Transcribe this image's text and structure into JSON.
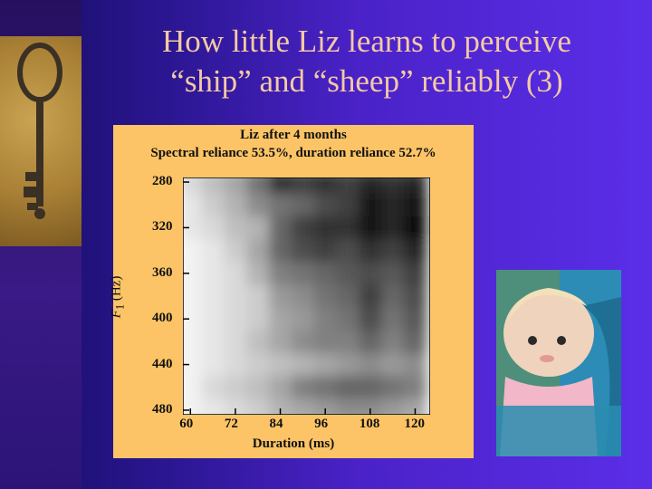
{
  "slide": {
    "title_line1": "How little Liz learns to perceive",
    "title_line2": "“ship” and “sheep” reliably (3)"
  },
  "figure": {
    "title_line1": "Liz after 4 months",
    "title_line2": "Spectral reliance 53.5%, duration reliance 52.7%",
    "ylabel_var": "F",
    "ylabel_sub": "1",
    "ylabel_unit": " (Hz)",
    "xlabel": "Duration (ms)",
    "yticks": [
      "280",
      "320",
      "360",
      "400",
      "440",
      "480"
    ],
    "xticks": [
      "60",
      "72",
      "84",
      "96",
      "108",
      "120"
    ]
  },
  "chart_data": {
    "type": "heatmap",
    "title": "Liz after 4 months",
    "subtitle": "Spectral reliance 53.5%, duration reliance 52.7%",
    "xlabel": "Duration (ms)",
    "ylabel": "F1 (Hz)",
    "xlim": [
      58,
      124
    ],
    "ylim": [
      276,
      484
    ],
    "x": [
      60,
      66,
      72,
      78,
      84,
      90,
      96,
      102,
      108,
      114,
      120
    ],
    "y": [
      280,
      300,
      320,
      340,
      360,
      380,
      400,
      420,
      440,
      460,
      480
    ],
    "z": [
      [
        0.15,
        0.25,
        0.35,
        0.55,
        0.8,
        0.75,
        0.8,
        0.75,
        0.85,
        0.8,
        0.85
      ],
      [
        0.1,
        0.2,
        0.3,
        0.45,
        0.55,
        0.6,
        0.7,
        0.75,
        0.9,
        0.85,
        0.9
      ],
      [
        0.1,
        0.15,
        0.25,
        0.3,
        0.6,
        0.75,
        0.8,
        0.8,
        0.9,
        0.85,
        0.95
      ],
      [
        0.05,
        0.1,
        0.2,
        0.35,
        0.6,
        0.7,
        0.75,
        0.7,
        0.8,
        0.75,
        0.85
      ],
      [
        0.05,
        0.1,
        0.15,
        0.3,
        0.5,
        0.55,
        0.6,
        0.65,
        0.7,
        0.65,
        0.75
      ],
      [
        0.05,
        0.1,
        0.15,
        0.2,
        0.4,
        0.45,
        0.55,
        0.6,
        0.75,
        0.6,
        0.7
      ],
      [
        0.05,
        0.1,
        0.15,
        0.2,
        0.35,
        0.4,
        0.5,
        0.55,
        0.7,
        0.55,
        0.65
      ],
      [
        0.05,
        0.1,
        0.15,
        0.25,
        0.35,
        0.45,
        0.5,
        0.5,
        0.6,
        0.5,
        0.6
      ],
      [
        0.05,
        0.1,
        0.15,
        0.2,
        0.25,
        0.3,
        0.35,
        0.4,
        0.45,
        0.4,
        0.45
      ],
      [
        0.05,
        0.15,
        0.2,
        0.25,
        0.35,
        0.5,
        0.55,
        0.6,
        0.6,
        0.55,
        0.5
      ],
      [
        0.05,
        0.1,
        0.15,
        0.2,
        0.3,
        0.35,
        0.4,
        0.45,
        0.45,
        0.4,
        0.35
      ]
    ],
    "colormap": "white-to-black",
    "grid": false,
    "legend": "none"
  }
}
